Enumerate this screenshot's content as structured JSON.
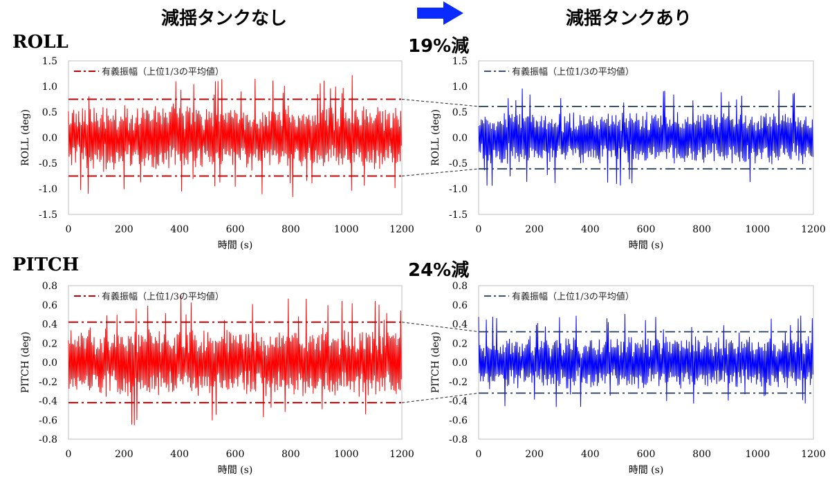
{
  "header": {
    "left_title": "減揺タンクなし",
    "right_title": "減揺タンクあり"
  },
  "sections": {
    "roll": {
      "label": "ROLL",
      "reduction": "19%減"
    },
    "pitch": {
      "label": "PITCH",
      "reduction": "24%減"
    }
  },
  "colors": {
    "without": "#ff0000",
    "with": "#0000ff",
    "threshold_without": "#c00000",
    "threshold_with": "#1f3864",
    "arrow": "#0a2bff"
  },
  "chart_data": [
    {
      "id": "roll-without",
      "type": "line",
      "xlabel": "時間 (s)",
      "ylabel": "ROLL (deg)",
      "xlim": [
        0,
        1200
      ],
      "ylim": [
        -1.5,
        1.5
      ],
      "xticks": [
        "0",
        "200",
        "400",
        "600",
        "800",
        "1000",
        "1200"
      ],
      "yticks": [
        "1.5",
        "1.0",
        "0.5",
        "0.0",
        "-0.5",
        "-1.0",
        "-1.5"
      ],
      "amplitude": 0.75,
      "legend": "有義振幅（上位1/3の平均値）",
      "series_color": "#ff0000",
      "threshold": 0.75
    },
    {
      "id": "roll-with",
      "type": "line",
      "xlabel": "時間 (s)",
      "ylabel": "ROLL (deg)",
      "xlim": [
        0,
        1200
      ],
      "ylim": [
        -1.5,
        1.5
      ],
      "xticks": [
        "0",
        "200",
        "400",
        "600",
        "800",
        "1000",
        "1200"
      ],
      "yticks": [
        "1.5",
        "1.0",
        "0.5",
        "0.0",
        "-0.5",
        "-1.0",
        "-1.5"
      ],
      "amplitude": 0.61,
      "legend": "有義振幅（上位1/3の平均値）",
      "series_color": "#0000ff",
      "threshold": 0.61
    },
    {
      "id": "pitch-without",
      "type": "line",
      "xlabel": "時間 (s)",
      "ylabel": "PITCH (deg)",
      "xlim": [
        0,
        1200
      ],
      "ylim": [
        -0.8,
        0.8
      ],
      "xticks": [
        "0",
        "200",
        "400",
        "600",
        "800",
        "1000",
        "1200"
      ],
      "yticks": [
        "0.8",
        "0.6",
        "0.4",
        "0.2",
        "0.0",
        "-0.2",
        "-0.4",
        "-0.6",
        "-0.8"
      ],
      "amplitude": 0.42,
      "legend": "有義振幅（上位1/3の平均値）",
      "series_color": "#ff0000",
      "threshold": 0.42
    },
    {
      "id": "pitch-with",
      "type": "line",
      "xlabel": "時間 (s)",
      "ylabel": "PITCH (deg)",
      "xlim": [
        0,
        1200
      ],
      "ylim": [
        -0.8,
        0.8
      ],
      "xticks": [
        "0",
        "200",
        "400",
        "600",
        "800",
        "1000",
        "1200"
      ],
      "yticks": [
        "0.8",
        "0.6",
        "0.4",
        "0.2",
        "0.0",
        "-0.2",
        "-0.4",
        "-0.6",
        "-0.8"
      ],
      "amplitude": 0.32,
      "legend": "有義振幅（上位1/3の平均値）",
      "series_color": "#0000ff",
      "threshold": 0.32
    }
  ]
}
